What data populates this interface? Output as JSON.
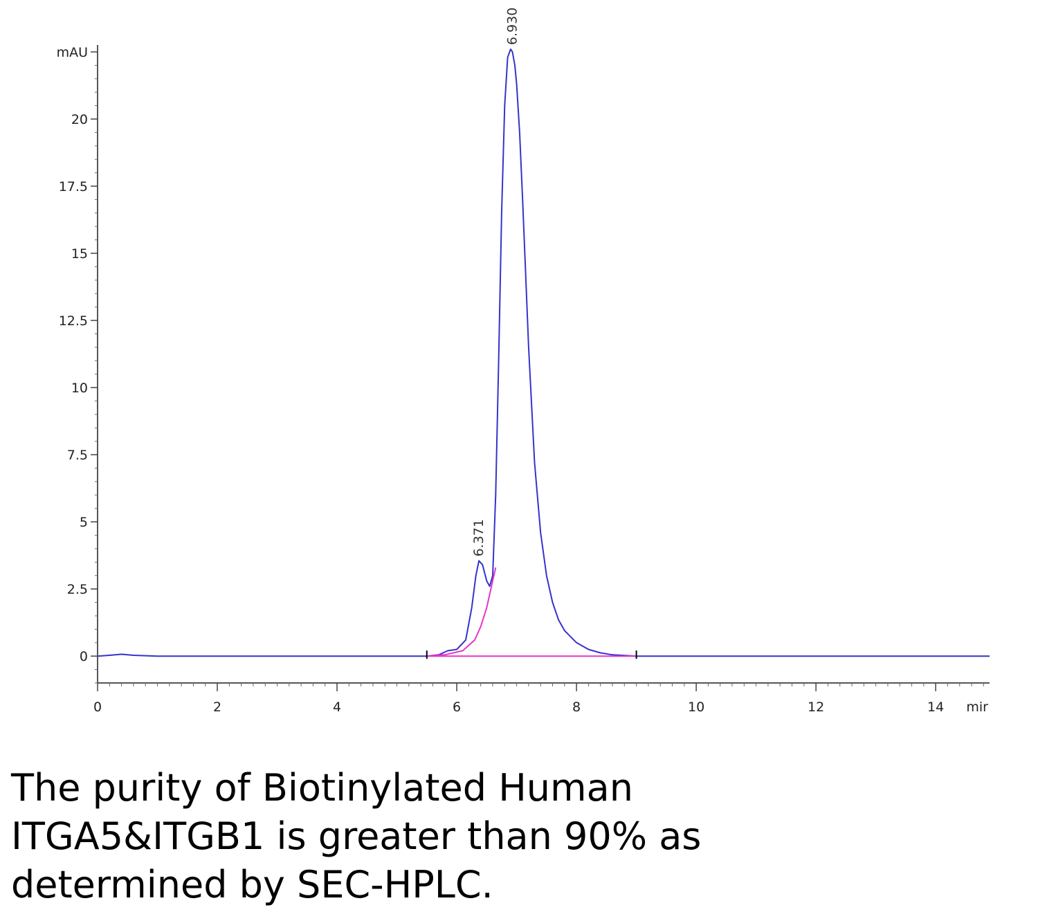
{
  "chart_data": {
    "type": "line",
    "y_unit": "mAU",
    "x_unit": "mir",
    "xlim": [
      0,
      14.9
    ],
    "ylim": [
      -1,
      22.5
    ],
    "x_ticks": [
      0,
      2,
      4,
      6,
      8,
      10,
      12,
      14
    ],
    "x_tick_labels": [
      "0",
      "2",
      "4",
      "6",
      "8",
      "10",
      "12",
      "14"
    ],
    "y_ticks": [
      0,
      2.5,
      5,
      7.5,
      10,
      12.5,
      15,
      17.5,
      20
    ],
    "y_tick_labels": [
      "0",
      "2.5",
      "5",
      "7.5",
      "10",
      "12.5",
      "15",
      "17.5",
      "20"
    ],
    "grid": false,
    "series": [
      {
        "color": "#3333cc",
        "x": [
          0,
          0.2,
          0.4,
          0.6,
          1.0,
          2.0,
          3.0,
          4.0,
          5.0,
          5.5,
          5.7,
          5.85,
          6.0,
          6.15,
          6.25,
          6.32,
          6.37,
          6.43,
          6.5,
          6.55,
          6.6,
          6.65,
          6.7,
          6.75,
          6.8,
          6.85,
          6.9,
          6.93,
          6.97,
          7.0,
          7.05,
          7.1,
          7.15,
          7.2,
          7.3,
          7.4,
          7.5,
          7.6,
          7.7,
          7.8,
          8.0,
          8.2,
          8.4,
          8.6,
          9.0,
          10.0,
          11.0,
          12.0,
          13.0,
          14.0,
          14.9
        ],
        "y": [
          0.0,
          0.03,
          0.07,
          0.03,
          0.0,
          0.0,
          0.0,
          0.0,
          0.0,
          0.0,
          0.05,
          0.2,
          0.25,
          0.6,
          1.8,
          3.0,
          3.55,
          3.4,
          2.8,
          2.6,
          3.0,
          6.0,
          11.0,
          16.5,
          20.5,
          22.3,
          22.6,
          22.5,
          22.0,
          21.3,
          19.5,
          17.0,
          14.3,
          11.5,
          7.2,
          4.6,
          3.0,
          2.0,
          1.35,
          0.95,
          0.5,
          0.25,
          0.12,
          0.05,
          0.0,
          0.0,
          0.0,
          0.0,
          0.0,
          0.0,
          0.0
        ]
      },
      {
        "color": "#e633cc",
        "x": [
          5.5,
          5.8,
          6.1,
          6.3,
          6.4,
          6.5,
          6.58,
          6.65
        ],
        "y": [
          0.0,
          0.05,
          0.2,
          0.6,
          1.1,
          1.8,
          2.6,
          3.3
        ]
      },
      {
        "color": "#e633cc",
        "x": [
          5.5,
          9.0
        ],
        "y": [
          0.0,
          0.0
        ]
      }
    ],
    "peaks": [
      {
        "x": 6.371,
        "y": 3.55,
        "label": "6.371"
      },
      {
        "x": 6.93,
        "y": 22.6,
        "label": "6.930"
      }
    ],
    "baseline_markers": [
      5.5,
      9.0
    ]
  },
  "caption": {
    "line1": "The purity of Biotinylated Human",
    "line2": "ITGA5&ITGB1 is greater than 90% as",
    "line3": "determined by SEC-HPLC."
  }
}
